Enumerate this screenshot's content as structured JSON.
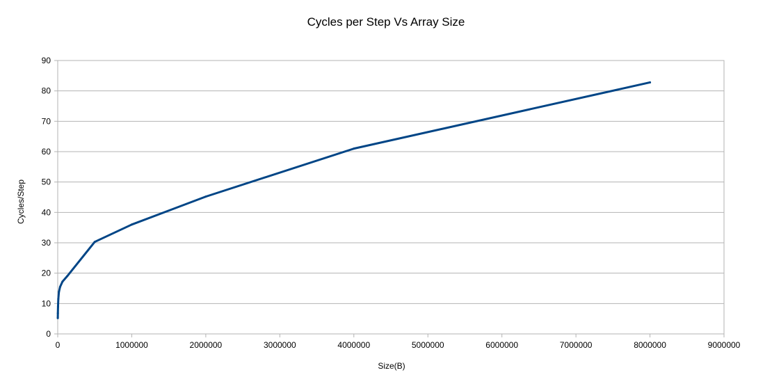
{
  "chart_data": {
    "type": "line",
    "title": "Cycles per Step Vs Array Size",
    "xlabel": "Size(B)",
    "ylabel": "Cycles/Step",
    "xlim": [
      0,
      9000000
    ],
    "ylim": [
      0,
      90
    ],
    "x_ticks": [
      "0",
      "1000000",
      "2000000",
      "3000000",
      "4000000",
      "5000000",
      "6000000",
      "7000000",
      "8000000",
      "9000000"
    ],
    "y_ticks": [
      "0",
      "10",
      "20",
      "30",
      "40",
      "50",
      "60",
      "70",
      "80",
      "90"
    ],
    "grid": true,
    "legend": "none",
    "color": "#004586",
    "series": [
      {
        "x": [
          1000,
          2000,
          4000,
          8000,
          16000,
          32000,
          64000,
          128000,
          500000,
          1000000,
          2000000,
          4000000,
          8000000
        ],
        "y": [
          5.2,
          6.8,
          9.0,
          11.5,
          13.8,
          15.5,
          17.2,
          19.0,
          30.3,
          36.0,
          45.2,
          61.0,
          82.8
        ]
      }
    ]
  }
}
